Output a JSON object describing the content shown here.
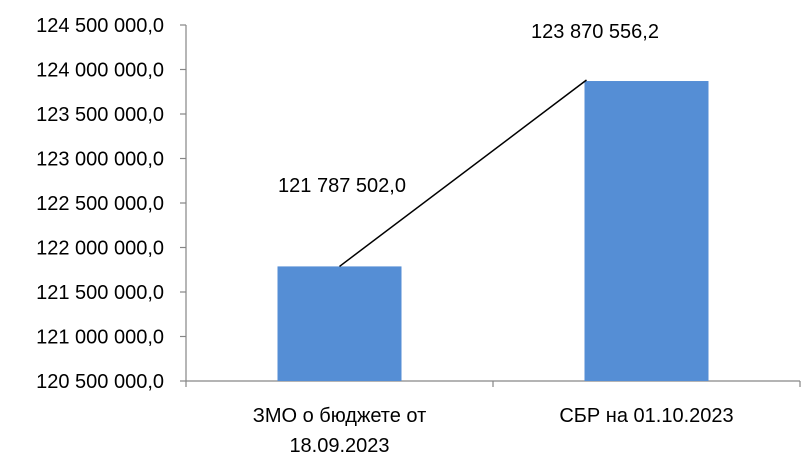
{
  "chart_data": {
    "type": "bar",
    "categories": [
      [
        "ЗМО о бюджете от",
        "18.09.2023"
      ],
      [
        "СБР на 01.10.2023"
      ]
    ],
    "values": [
      121787502.0,
      123870556.2
    ],
    "data_labels": [
      "121 787 502,0",
      "123 870 556,2"
    ],
    "ylim": [
      120500000,
      124500000
    ],
    "yticks": [
      120500000,
      121000000,
      121500000,
      122000000,
      122500000,
      123000000,
      123500000,
      124000000,
      124500000
    ],
    "ytick_labels": [
      "120 500 000,0",
      "121 000 000,0",
      "121 500 000,0",
      "122 000 000,0",
      "122 500 000,0",
      "123 000 000,0",
      "123 500 000,0",
      "124 000 000,0",
      "124 500 000,0"
    ],
    "title": "",
    "xlabel": "",
    "ylabel": "",
    "grid": false,
    "legend": "none",
    "bar_color": "#558ED5",
    "connector_line": true
  }
}
